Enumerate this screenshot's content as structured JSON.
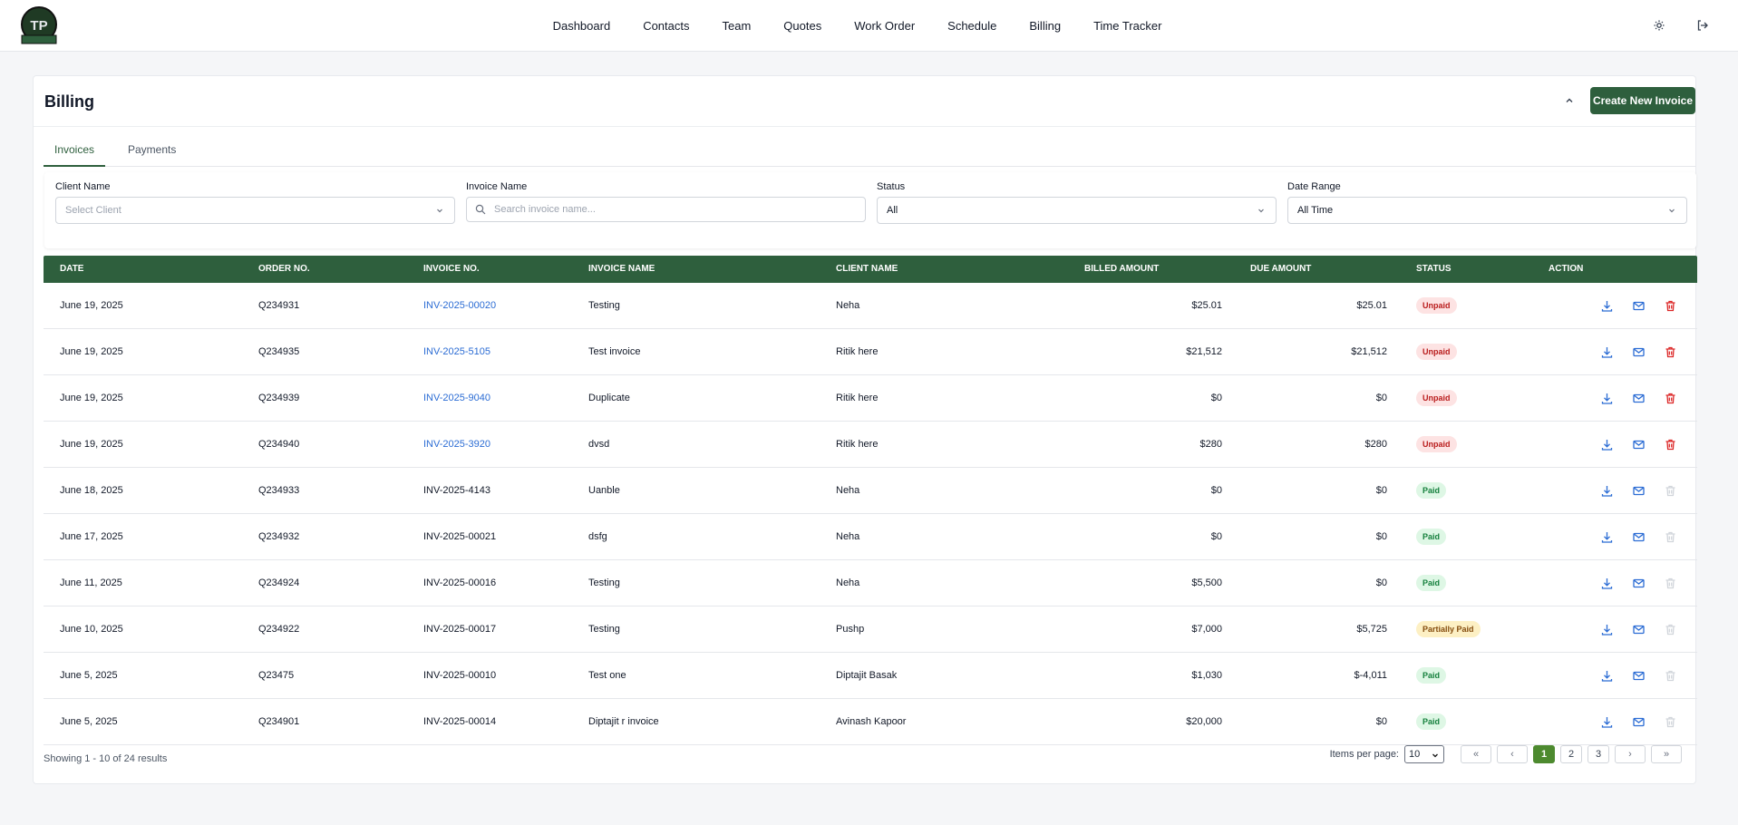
{
  "header": {
    "logo_text": "TP",
    "nav": [
      "Dashboard",
      "Contacts",
      "Team",
      "Quotes",
      "Work Order",
      "Schedule",
      "Billing",
      "Time Tracker"
    ]
  },
  "page": {
    "title": "Billing",
    "create_label": "Create New Invoice",
    "tabs": [
      "Invoices",
      "Payments"
    ]
  },
  "filters": {
    "client_label": "Client Name",
    "client_value": "Select Client",
    "invoice_label": "Invoice Name",
    "invoice_placeholder": "Search invoice name...",
    "status_label": "Status",
    "status_value": "All",
    "date_label": "Date Range",
    "date_value": "All Time"
  },
  "table": {
    "columns": [
      "DATE",
      "ORDER NO.",
      "INVOICE NO.",
      "INVOICE NAME",
      "CLIENT NAME",
      "BILLED AMOUNT",
      "DUE AMOUNT",
      "STATUS",
      "ACTION"
    ],
    "rows": [
      {
        "date": "June 19, 2025",
        "order": "Q234931",
        "invoice": "INV-2025-00020",
        "name": "Testing",
        "client": "Neha",
        "billed": "$25.01",
        "due": "$25.01",
        "status": "Unpaid"
      },
      {
        "date": "June 19, 2025",
        "order": "Q234935",
        "invoice": "INV-2025-5105",
        "name": "Test invoice",
        "client": "Ritik here",
        "billed": "$21,512",
        "due": "$21,512",
        "status": "Unpaid"
      },
      {
        "date": "June 19, 2025",
        "order": "Q234939",
        "invoice": "INV-2025-9040",
        "name": "Duplicate",
        "client": "Ritik here",
        "billed": "$0",
        "due": "$0",
        "status": "Unpaid"
      },
      {
        "date": "June 19, 2025",
        "order": "Q234940",
        "invoice": "INV-2025-3920",
        "name": "dvsd",
        "client": "Ritik here",
        "billed": "$280",
        "due": "$280",
        "status": "Unpaid"
      },
      {
        "date": "June 18, 2025",
        "order": "Q234933",
        "invoice": "INV-2025-4143",
        "name": "Uanble",
        "client": "Neha",
        "billed": "$0",
        "due": "$0",
        "status": "Paid"
      },
      {
        "date": "June 17, 2025",
        "order": "Q234932",
        "invoice": "INV-2025-00021",
        "name": "dsfg",
        "client": "Neha",
        "billed": "$0",
        "due": "$0",
        "status": "Paid"
      },
      {
        "date": "June 11, 2025",
        "order": "Q234924",
        "invoice": "INV-2025-00016",
        "name": "Testing",
        "client": "Neha",
        "billed": "$5,500",
        "due": "$0",
        "status": "Paid"
      },
      {
        "date": "June 10, 2025",
        "order": "Q234922",
        "invoice": "INV-2025-00017",
        "name": "Testing",
        "client": "Pushp",
        "billed": "$7,000",
        "due": "$5,725",
        "status": "Partially Paid"
      },
      {
        "date": "June 5, 2025",
        "order": "Q23475",
        "invoice": "INV-2025-00010",
        "name": "Test one",
        "client": "Diptajit Basak",
        "billed": "$1,030",
        "due": "$-4,011",
        "status": "Paid"
      },
      {
        "date": "June 5, 2025",
        "order": "Q234901",
        "invoice": "INV-2025-00014",
        "name": "Diptajit r invoice",
        "client": "Avinash Kapoor",
        "billed": "$20,000",
        "due": "$0",
        "status": "Paid"
      }
    ]
  },
  "footer": {
    "showing": "Showing 1 - 10 of 24 results",
    "per_page_label": "Items per page:",
    "per_page_value": "10",
    "first": "«",
    "prev": "‹",
    "pages": [
      "1",
      "2",
      "3"
    ],
    "next": "›",
    "last": "»"
  },
  "colors": {
    "primary": "#2e5f3d",
    "link": "#2b6cd4",
    "active_page": "#4d8a2f"
  }
}
